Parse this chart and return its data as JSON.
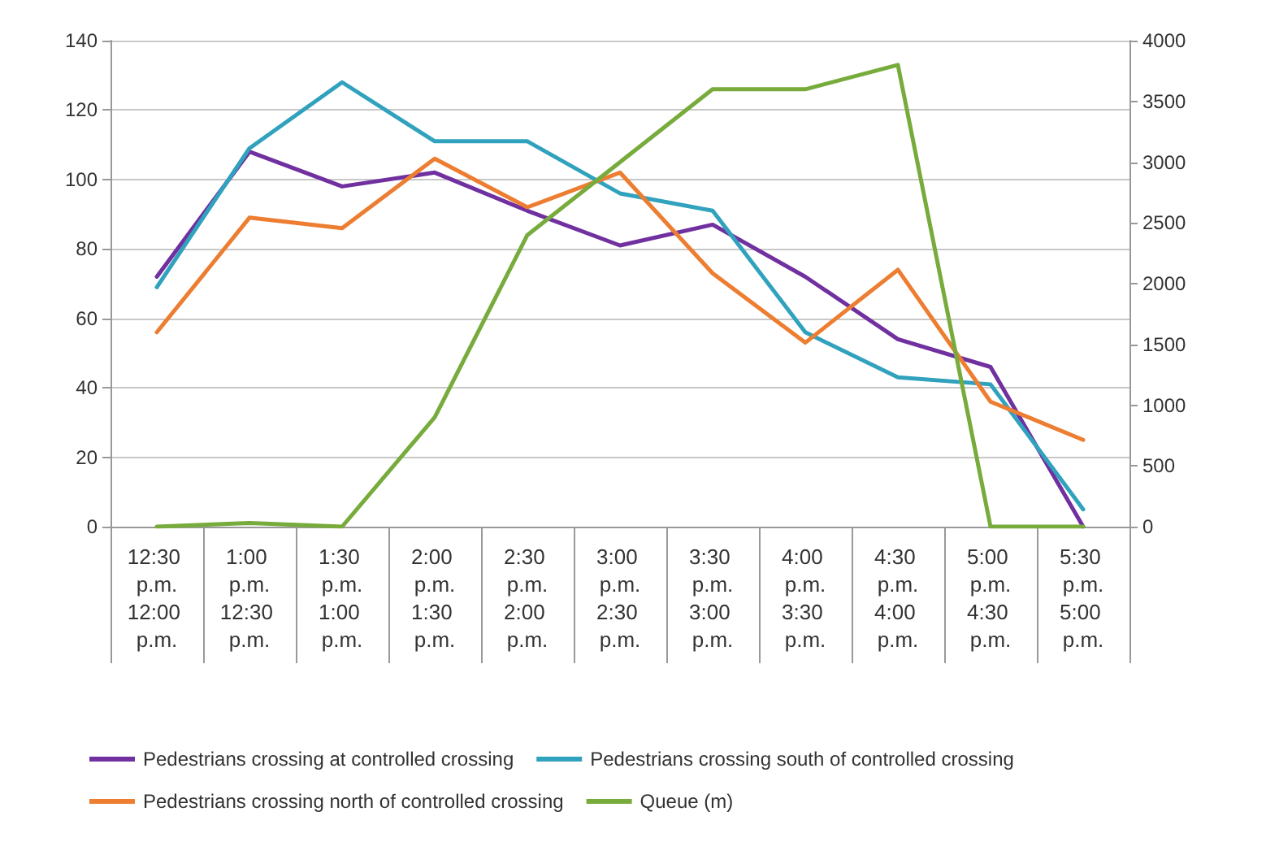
{
  "chart_data": {
    "type": "line",
    "categories": [
      "12:30 p.m.\n12:00 p.m.",
      "1:00 p.m.\n12:30 p.m.",
      "1:30 p.m.\n1:00 p.m.",
      "2:00 p.m.\n1:30 p.m.",
      "2:30 p.m.\n2:00 p.m.",
      "3:00 p.m.\n2:30 p.m.",
      "3:30 p.m.\n3:00 p.m.",
      "4:00 p.m.\n3:30 p.m.",
      "4:30 p.m.\n4:00 p.m.",
      "5:00 p.m.\n4:30 p.m.",
      "5:30 p.m.\n5:00 p.m."
    ],
    "series": [
      {
        "name": "Pedestrians crossing at controlled crossing",
        "color": "#7030a0",
        "values": [
          72,
          108,
          98,
          102,
          91,
          81,
          87,
          72,
          54,
          46,
          0
        ]
      },
      {
        "name": "Pedestrians crossing south of controlled crossing",
        "color": "#31a2be",
        "values": [
          69,
          109,
          128,
          111,
          111,
          96,
          91,
          56,
          43,
          41,
          5
        ]
      },
      {
        "name": "Pedestrians crossing north of controlled crossing",
        "color": "#ed7d31",
        "values": [
          56,
          89,
          86,
          106,
          92,
          102,
          73,
          53,
          74,
          36,
          25
        ]
      },
      {
        "name": "Queue (m)",
        "color": "#77ab3c",
        "axis": "y2",
        "values": [
          0,
          30,
          0,
          900,
          2400,
          3000,
          3600,
          3600,
          3800,
          0,
          0
        ]
      }
    ],
    "ylim": [
      0,
      140
    ],
    "yticks": [
      0,
      20,
      40,
      60,
      80,
      100,
      120,
      140
    ],
    "y2lim": [
      0,
      4000
    ],
    "y2ticks": [
      0,
      500,
      1000,
      1500,
      2000,
      2500,
      3000,
      3500,
      4000
    ],
    "grid": "y",
    "legend": "bottom",
    "marker": "none",
    "line_style": "solid"
  }
}
